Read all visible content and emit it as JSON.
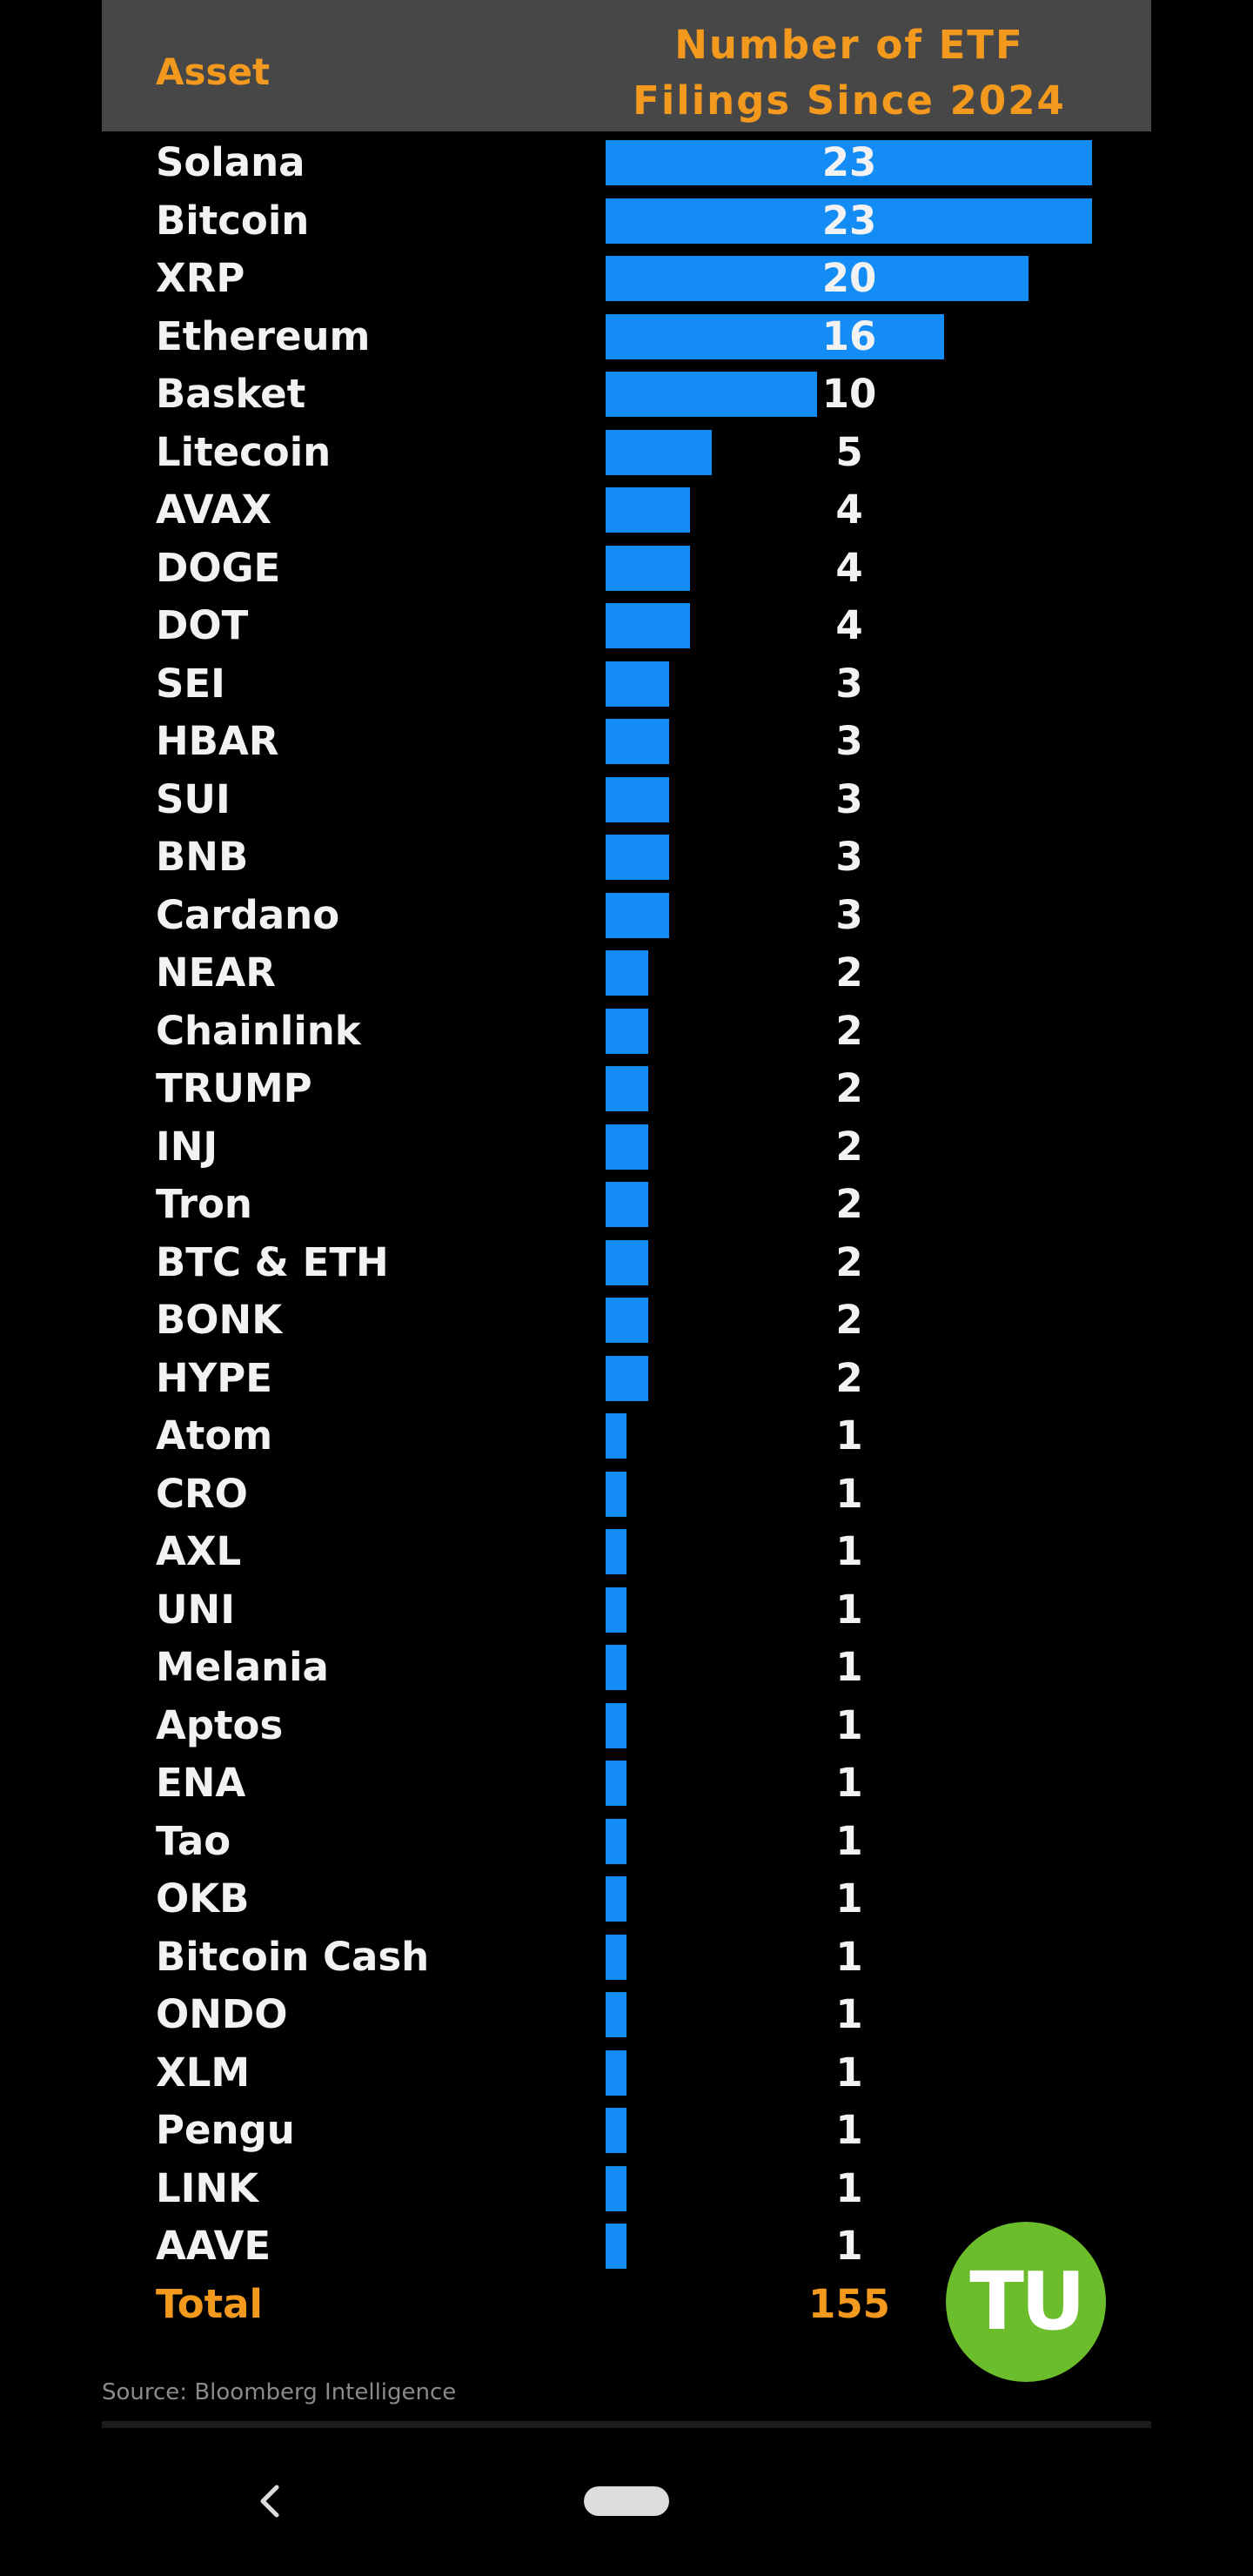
{
  "chart_data": {
    "type": "bar",
    "orientation": "horizontal",
    "category_header": "Asset",
    "title": "Number of ETF Filings Since 2024",
    "categories": [
      "Solana",
      "Bitcoin",
      "XRP",
      "Ethereum",
      "Basket",
      "Litecoin",
      "AVAX",
      "DOGE",
      "DOT",
      "SEI",
      "HBAR",
      "SUI",
      "BNB",
      "Cardano",
      "NEAR",
      "Chainlink",
      "TRUMP",
      "INJ",
      "Tron",
      "BTC & ETH",
      "BONK",
      "HYPE",
      "Atom",
      "CRO",
      "AXL",
      "UNI",
      "Melania",
      "Aptos",
      "ENA",
      "Tao",
      "OKB",
      "Bitcoin Cash",
      "ONDO",
      "XLM",
      "Pengu",
      "LINK",
      "AAVE"
    ],
    "values": [
      23,
      23,
      20,
      16,
      10,
      5,
      4,
      4,
      4,
      3,
      3,
      3,
      3,
      3,
      2,
      2,
      2,
      2,
      2,
      2,
      2,
      2,
      1,
      1,
      1,
      1,
      1,
      1,
      1,
      1,
      1,
      1,
      1,
      1,
      1,
      1,
      1
    ],
    "color": "#138cf5",
    "total": {
      "label": "Total",
      "value": 155
    },
    "source": "Source: Bloomberg Intelligence",
    "logo": "TU"
  }
}
